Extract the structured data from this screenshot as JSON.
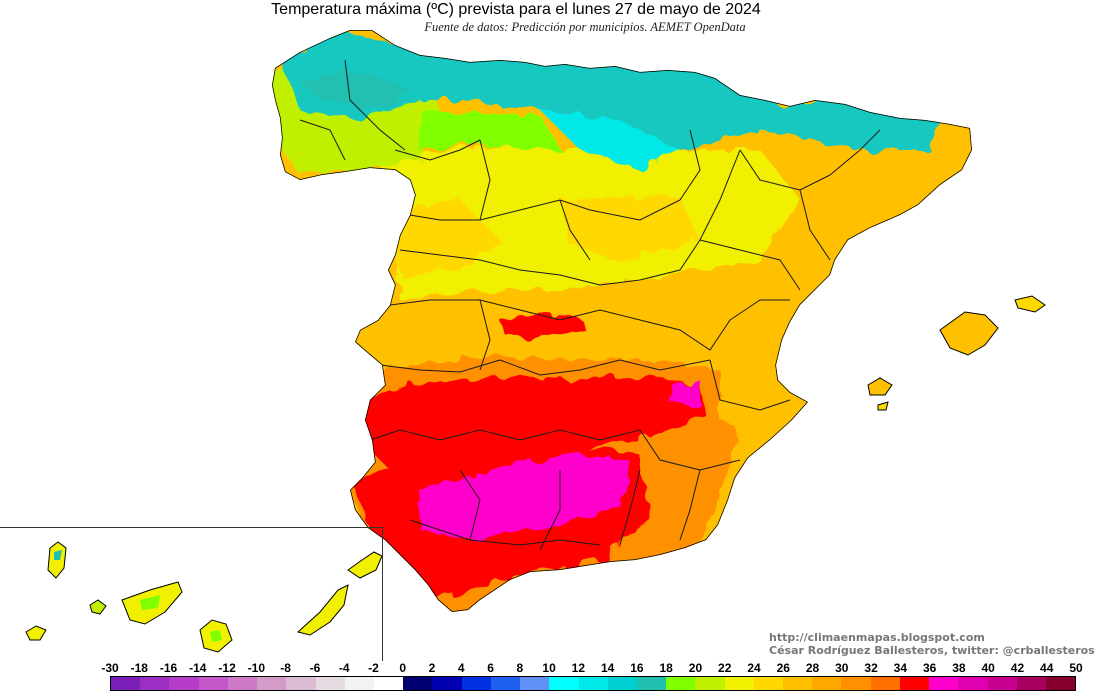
{
  "title": "Temperatura máxima (ºC) prevista para el lunes 27 de mayo de 2024",
  "subtitle": "Fuente de datos: Predicción por municipios. AEMET OpenData",
  "credits": {
    "url": "http://climaenmapas.blogspot.com",
    "author": "César Rodríguez Ballesteros, twitter: @crballesteros"
  },
  "legend": {
    "labels": [
      "-30",
      "-18",
      "-16",
      "-14",
      "-12",
      "-10",
      "-8",
      "-6",
      "-4",
      "-2",
      "0",
      "2",
      "4",
      "6",
      "8",
      "10",
      "12",
      "14",
      "16",
      "18",
      "20",
      "22",
      "24",
      "26",
      "28",
      "30",
      "32",
      "34",
      "36",
      "38",
      "40",
      "42",
      "44",
      "50"
    ],
    "colors": [
      "#7a1fb8",
      "#9b2fc4",
      "#b63dc8",
      "#c457c9",
      "#cc79c6",
      "#d39bc8",
      "#dcbcd5",
      "#e5dbe2",
      "#f2f2f2",
      "#ffffff",
      "#000070",
      "#0000b0",
      "#0030e0",
      "#2060f0",
      "#6090f8",
      "#00ffff",
      "#00e8e8",
      "#00d0d0",
      "#20c0b0",
      "#80ff00",
      "#c0f000",
      "#f0f000",
      "#ffd800",
      "#ffc000",
      "#ffa800",
      "#ff9000",
      "#ff7000",
      "#ff0000",
      "#ff00cc",
      "#e000b0",
      "#c80090",
      "#a80060",
      "#880030"
    ]
  },
  "map_regions": [
    {
      "name": "cantabrian-coast",
      "color": "#18c8c0"
    },
    {
      "name": "northern-plateau",
      "color": "#f0f000"
    },
    {
      "name": "central-spain",
      "color": "#ffc000"
    },
    {
      "name": "guadalquivir-valley",
      "color": "#ff00cc"
    },
    {
      "name": "andalusia-hot",
      "color": "#ff0000"
    }
  ]
}
